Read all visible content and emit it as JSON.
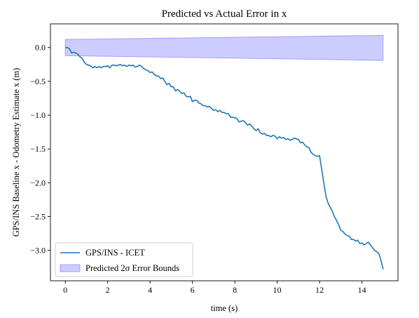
{
  "chart_data": {
    "type": "line",
    "title": "Predicted vs Actual Error in x",
    "xlabel": "time (s)",
    "ylabel": "GPS/INS Baseline x - Odometry Estimate x (m)",
    "xlim": [
      -0.7,
      15.7
    ],
    "ylim": [
      -3.45,
      0.35
    ],
    "xticks": [
      0,
      2,
      4,
      6,
      8,
      10,
      12,
      14
    ],
    "yticks": [
      0.0,
      -0.5,
      -1.0,
      -1.5,
      -2.0,
      -2.5,
      -3.0
    ],
    "ytick_labels": [
      "0.0",
      "−0.5",
      "−1.0",
      "−1.5",
      "−2.0",
      "−2.5",
      "−3.0"
    ],
    "grid": false,
    "legend_position": "lower-left",
    "series": [
      {
        "name": "GPS/INS - ICET",
        "color": "#1f77b4",
        "x": [
          0.0,
          0.1,
          0.2,
          0.3,
          0.4,
          0.5,
          0.6,
          0.7,
          0.8,
          0.9,
          1.0,
          1.1,
          1.2,
          1.3,
          1.4,
          1.5,
          1.6,
          1.7,
          1.8,
          1.9,
          2.0,
          2.1,
          2.2,
          2.3,
          2.4,
          2.5,
          2.6,
          2.7,
          2.8,
          2.9,
          3.0,
          3.1,
          3.2,
          3.3,
          3.4,
          3.5,
          3.6,
          3.7,
          3.8,
          3.9,
          4.0,
          4.1,
          4.2,
          4.3,
          4.4,
          4.5,
          4.6,
          4.7,
          4.8,
          4.9,
          5.0,
          5.1,
          5.2,
          5.3,
          5.4,
          5.5,
          5.6,
          5.7,
          5.8,
          5.9,
          6.0,
          6.1,
          6.2,
          6.3,
          6.4,
          6.5,
          6.6,
          6.7,
          6.8,
          6.9,
          7.0,
          7.1,
          7.2,
          7.3,
          7.4,
          7.5,
          7.6,
          7.7,
          7.8,
          7.9,
          8.0,
          8.1,
          8.2,
          8.3,
          8.4,
          8.5,
          8.6,
          8.7,
          8.8,
          8.9,
          9.0,
          9.1,
          9.2,
          9.3,
          9.4,
          9.5,
          9.6,
          9.7,
          9.8,
          9.9,
          10.0,
          10.1,
          10.2,
          10.3,
          10.4,
          10.5,
          10.6,
          10.7,
          10.8,
          10.9,
          11.0,
          11.1,
          11.2,
          11.3,
          11.4,
          11.5,
          11.6,
          11.7,
          11.8,
          11.9,
          12.0,
          12.1,
          12.2,
          12.3,
          12.4,
          12.5,
          12.6,
          12.7,
          12.8,
          12.9,
          13.0,
          13.1,
          13.2,
          13.3,
          13.4,
          13.5,
          13.6,
          13.7,
          13.8,
          13.9,
          14.0,
          14.1,
          14.2,
          14.3,
          14.4,
          14.5,
          14.6,
          14.7,
          14.8,
          14.9,
          15.0
        ],
        "y": [
          0.0,
          0.0,
          -0.02,
          -0.08,
          -0.07,
          -0.08,
          -0.1,
          -0.14,
          -0.16,
          -0.22,
          -0.25,
          -0.26,
          -0.27,
          -0.3,
          -0.28,
          -0.3,
          -0.28,
          -0.3,
          -0.28,
          -0.28,
          -0.27,
          -0.3,
          -0.26,
          -0.26,
          -0.27,
          -0.26,
          -0.25,
          -0.27,
          -0.26,
          -0.28,
          -0.26,
          -0.27,
          -0.26,
          -0.29,
          -0.28,
          -0.26,
          -0.28,
          -0.31,
          -0.33,
          -0.34,
          -0.37,
          -0.36,
          -0.4,
          -0.42,
          -0.42,
          -0.46,
          -0.45,
          -0.5,
          -0.55,
          -0.53,
          -0.58,
          -0.58,
          -0.64,
          -0.62,
          -0.65,
          -0.68,
          -0.67,
          -0.72,
          -0.73,
          -0.72,
          -0.8,
          -0.78,
          -0.78,
          -0.82,
          -0.83,
          -0.86,
          -0.86,
          -0.88,
          -0.87,
          -0.9,
          -0.93,
          -0.92,
          -0.95,
          -0.93,
          -0.96,
          -0.96,
          -0.98,
          -0.98,
          -1.03,
          -1.03,
          -1.04,
          -1.05,
          -1.1,
          -1.09,
          -1.08,
          -1.11,
          -1.15,
          -1.13,
          -1.16,
          -1.2,
          -1.23,
          -1.2,
          -1.26,
          -1.28,
          -1.27,
          -1.3,
          -1.3,
          -1.32,
          -1.3,
          -1.31,
          -1.35,
          -1.32,
          -1.34,
          -1.33,
          -1.36,
          -1.35,
          -1.37,
          -1.36,
          -1.34,
          -1.35,
          -1.36,
          -1.41,
          -1.4,
          -1.44,
          -1.47,
          -1.48,
          -1.55,
          -1.58,
          -1.6,
          -1.61,
          -1.6,
          -1.8,
          -2.0,
          -2.2,
          -2.3,
          -2.36,
          -2.42,
          -2.5,
          -2.56,
          -2.62,
          -2.7,
          -2.72,
          -2.76,
          -2.78,
          -2.79,
          -2.84,
          -2.84,
          -2.86,
          -2.85,
          -2.9,
          -2.89,
          -2.92,
          -2.9,
          -2.88,
          -2.92,
          -2.96,
          -3.0,
          -3.02,
          -3.05,
          -3.15,
          -3.28
        ]
      }
    ],
    "bounds": {
      "name": "Predicted 2σ Error Bounds",
      "fill": "#ccccff",
      "edge": "#9a9aff",
      "x": [
        0,
        15
      ],
      "upper": [
        0.12,
        0.18
      ],
      "lower": [
        -0.12,
        -0.19
      ]
    }
  }
}
